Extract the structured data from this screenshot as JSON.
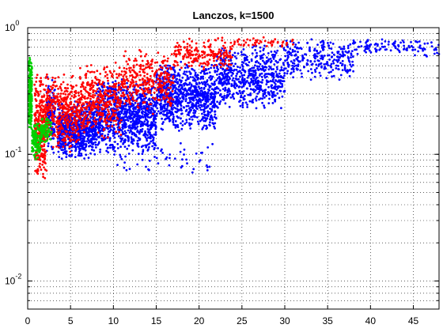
{
  "chart_data": {
    "type": "scatter",
    "title": "Lanczos, k=1500",
    "xlabel": "",
    "ylabel": "",
    "xlim": [
      0,
      48
    ],
    "ylim": [
      0.006,
      1
    ],
    "yscale": "log",
    "grid": true,
    "xticks": [
      0,
      5,
      10,
      15,
      20,
      25,
      30,
      35,
      40,
      45
    ],
    "xtick_labels": [
      "0",
      "5",
      "10",
      "15",
      "20",
      "25",
      "30",
      "35",
      "40",
      "45"
    ],
    "yticks": [
      0.01,
      0.1,
      1
    ],
    "ytick_labels": [
      {
        "base": "10",
        "exp": "-2"
      },
      {
        "base": "10",
        "exp": "-1"
      },
      {
        "base": "10",
        "exp": "0"
      }
    ],
    "series": [
      {
        "color": "#0000ff",
        "clusters": [
          {
            "x": [
              2.2,
              3.2
            ],
            "y": [
              0.095,
              0.42
            ],
            "n": 140
          },
          {
            "x": [
              3.5,
              8
            ],
            "y": [
              0.09,
              0.28
            ],
            "n": 700
          },
          {
            "x": [
              8,
              15
            ],
            "y": [
              0.1,
              0.4
            ],
            "n": 900
          },
          {
            "x": [
              15,
              22
            ],
            "y": [
              0.15,
              0.55
            ],
            "n": 800
          },
          {
            "x": [
              22,
              30
            ],
            "y": [
              0.22,
              0.75
            ],
            "n": 600
          },
          {
            "x": [
              30,
              38
            ],
            "y": [
              0.38,
              0.85
            ],
            "n": 260
          },
          {
            "x": [
              38,
              48
            ],
            "y": [
              0.58,
              0.85
            ],
            "n": 110
          },
          {
            "x": [
              10,
              22
            ],
            "y": [
              0.07,
              0.13
            ],
            "n": 60
          }
        ]
      },
      {
        "color": "#ff0000",
        "clusters": [
          {
            "x": [
              0.8,
              2.2
            ],
            "y": [
              0.06,
              0.45
            ],
            "n": 320
          },
          {
            "x": [
              2.2,
              6
            ],
            "y": [
              0.1,
              0.45
            ],
            "n": 380
          },
          {
            "x": [
              6,
              11
            ],
            "y": [
              0.13,
              0.55
            ],
            "n": 380
          },
          {
            "x": [
              11,
              17
            ],
            "y": [
              0.2,
              0.7
            ],
            "n": 320
          },
          {
            "x": [
              17,
              24
            ],
            "y": [
              0.45,
              0.85
            ],
            "n": 200
          },
          {
            "x": [
              24,
              31
            ],
            "y": [
              0.7,
              0.85
            ],
            "n": 50
          }
        ]
      },
      {
        "color": "#00d000",
        "clusters": [
          {
            "x": [
              0.1,
              0.5
            ],
            "y": [
              0.15,
              0.6
            ],
            "n": 260
          },
          {
            "x": [
              0.5,
              1.5
            ],
            "y": [
              0.09,
              0.18
            ],
            "n": 120
          },
          {
            "x": [
              1.5,
              2.8
            ],
            "y": [
              0.12,
              0.2
            ],
            "n": 80
          }
        ]
      }
    ]
  }
}
